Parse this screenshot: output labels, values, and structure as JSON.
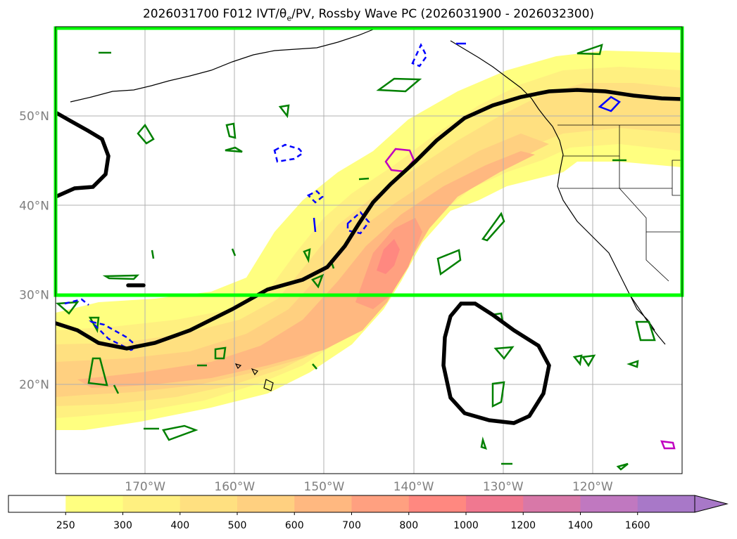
{
  "title": {
    "prefix": "2026031700 F012 IVT/",
    "theta": "θ",
    "theta_sub": "e",
    "suffix": "/PV, Rossby Wave PC (2026031900 - 2026032300)"
  },
  "map": {
    "lat_labels": [
      {
        "value": 50,
        "text": "50°N"
      },
      {
        "value": 40,
        "text": "40°N"
      },
      {
        "value": 30,
        "text": "30°N"
      },
      {
        "value": 20,
        "text": "20°N"
      }
    ],
    "lon_labels": [
      {
        "value": -170,
        "text": "170°W"
      },
      {
        "value": -160,
        "text": "160°W"
      },
      {
        "value": -150,
        "text": "150°W"
      },
      {
        "value": -140,
        "text": "140°W"
      },
      {
        "value": -130,
        "text": "130°W"
      },
      {
        "value": -120,
        "text": "120°W"
      }
    ],
    "box_color": "#00ff00"
  },
  "colorbar": {
    "levels": [
      "250",
      "300",
      "400",
      "500",
      "600",
      "700",
      "800",
      "1000",
      "1200",
      "1400",
      "1600"
    ],
    "colors": [
      "#ffffff",
      "#ffff80",
      "#fff080",
      "#ffe080",
      "#ffd080",
      "#ffb880",
      "#ffa080",
      "#ff8880",
      "#f07890",
      "#d878a8",
      "#c078c0",
      "#a878c8"
    ]
  }
}
